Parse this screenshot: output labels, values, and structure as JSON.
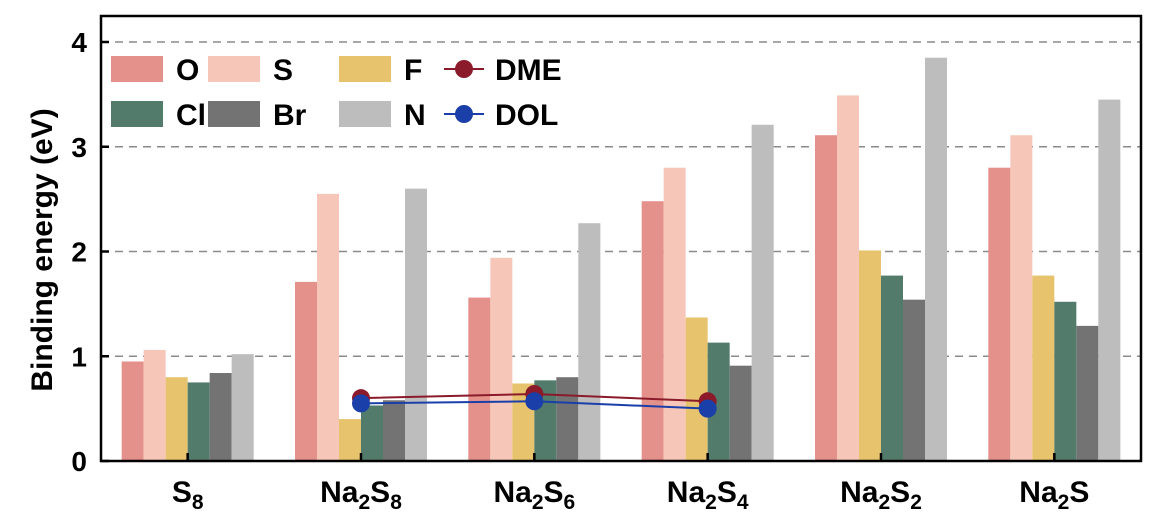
{
  "chart_data": {
    "type": "bar",
    "title": "",
    "xlabel": "",
    "ylabel": "Binding energy (eV)",
    "ylim": [
      0,
      4
    ],
    "yticks": [
      0,
      1,
      2,
      3,
      4
    ],
    "grid": "dashed horizontal at y-ticks",
    "categories": [
      {
        "base": "S",
        "sub": "8"
      },
      {
        "base": "Na",
        "sub": "2",
        "base2": "S",
        "sub2": "8"
      },
      {
        "base": "Na",
        "sub": "2",
        "base2": "S",
        "sub2": "6"
      },
      {
        "base": "Na",
        "sub": "2",
        "base2": "S",
        "sub2": "4"
      },
      {
        "base": "Na",
        "sub": "2",
        "base2": "S",
        "sub2": "2"
      },
      {
        "base": "Na",
        "sub": "2",
        "base2": "S",
        "sub2": ""
      }
    ],
    "series": [
      {
        "name": "O",
        "color": "#e4908b",
        "values": [
          0.95,
          1.71,
          1.56,
          2.48,
          3.11,
          2.8
        ]
      },
      {
        "name": "S",
        "color": "#f6c7b8",
        "values": [
          1.06,
          2.55,
          1.94,
          2.8,
          3.49,
          3.11
        ]
      },
      {
        "name": "F",
        "color": "#e7c36d",
        "values": [
          0.8,
          0.4,
          0.74,
          1.37,
          2.01,
          1.77
        ]
      },
      {
        "name": "Cl",
        "color": "#527b6b",
        "values": [
          0.75,
          0.53,
          0.77,
          1.13,
          1.77,
          1.52
        ]
      },
      {
        "name": "Br",
        "color": "#737373",
        "values": [
          0.84,
          0.58,
          0.8,
          0.91,
          1.54,
          1.29
        ]
      },
      {
        "name": "N",
        "color": "#bdbdbd",
        "values": [
          1.02,
          2.6,
          2.27,
          3.21,
          3.85,
          3.45
        ]
      }
    ],
    "lines": [
      {
        "name": "DME",
        "color": "#8b1a2b",
        "category_index": [
          1,
          2,
          3
        ],
        "values": [
          0.6,
          0.64,
          0.57
        ]
      },
      {
        "name": "DOL",
        "color": "#1a3fa8",
        "category_index": [
          1,
          2,
          3
        ],
        "values": [
          0.55,
          0.57,
          0.5
        ]
      }
    ],
    "legend": {
      "placement": "top-left",
      "rows": [
        [
          "O",
          "S",
          "F",
          "DME"
        ],
        [
          "Cl",
          "Br",
          "N",
          "DOL"
        ]
      ]
    }
  }
}
